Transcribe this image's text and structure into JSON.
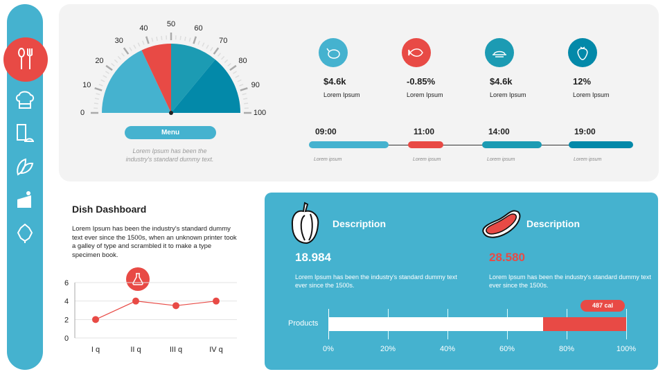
{
  "sidebar": {
    "items": [
      {
        "icon": "utensils-icon",
        "active": true
      },
      {
        "icon": "chef-hat-icon"
      },
      {
        "icon": "menu-cloche-icon"
      },
      {
        "icon": "leaves-icon"
      },
      {
        "icon": "cake-slice-icon"
      },
      {
        "icon": "hops-icon"
      }
    ]
  },
  "gauge": {
    "scale_labels": [
      "0",
      "10",
      "20",
      "30",
      "40",
      "50",
      "60",
      "70",
      "80",
      "90",
      "100"
    ],
    "segments": [
      {
        "from": 0,
        "to": 36,
        "color": "#45b2cf"
      },
      {
        "from": 36,
        "to": 50,
        "color": "#e84a45"
      },
      {
        "from": 50,
        "to": 72,
        "color": "#1c9bb3"
      },
      {
        "from": 72,
        "to": 100,
        "color": "#0389a9"
      }
    ],
    "needle_value": 50,
    "menu_label": "Menu",
    "caption_line1": "Lorem Ipsum has been the",
    "caption_line2": "industry's standard dummy text."
  },
  "kpis": [
    {
      "icon": "chicken-icon",
      "color": "#45b2cf",
      "value": "$4.6k",
      "label": "Lorem Ipsum"
    },
    {
      "icon": "fish-icon",
      "color": "#e84a45",
      "value": "-0.85%",
      "label": "Lorem Ipsum"
    },
    {
      "icon": "pasta-plate-icon",
      "color": "#1c9bb3",
      "value": "$4.6k",
      "label": "Lorem Ipsum"
    },
    {
      "icon": "strawberry-icon",
      "color": "#0389a9",
      "value": "12%",
      "label": "Lorem Ipsum"
    }
  ],
  "timeline": [
    {
      "time": "09:00",
      "label": "Lorem ipsum",
      "color": "#45b2cf"
    },
    {
      "time": "11:00",
      "label": "Lorem ipsum",
      "color": "#e84a45"
    },
    {
      "time": "14:00",
      "label": "Lorem ipsum",
      "color": "#1c9bb3"
    },
    {
      "time": "19:00",
      "label": "Lorem ipsum",
      "color": "#0389a9"
    }
  ],
  "dish": {
    "title": "Dish Dashboard",
    "text": "Lorem Ipsum has been the industry's standard dummy text ever since the 1500s, when an unknown printer took a galley  of type and scrambled it to make a type specimen book."
  },
  "chart_data": {
    "type": "line",
    "categories": [
      "I q",
      "II q",
      "III q",
      "IV q"
    ],
    "values": [
      2,
      4,
      3.5,
      4
    ],
    "ylim": [
      0,
      6
    ],
    "yticks": [
      "0",
      "2",
      "4",
      "6"
    ],
    "grid": true,
    "color": "#e84a45"
  },
  "descriptions": [
    {
      "icon": "bell-pepper-icon",
      "title": "Description",
      "value": "18.984",
      "value_color": "#ffffff",
      "text": "Lorem Ipsum has been the industry's standard dummy text ever since the 1500s."
    },
    {
      "icon": "steak-icon",
      "title": "Description",
      "value": "28.580",
      "value_color": "#e84a45",
      "text": "Lorem Ipsum has been the industry's standard dummy text ever since the 1500s."
    }
  ],
  "products_bar": {
    "label": "Products",
    "value_pct": 72,
    "badge": "487 cal",
    "ticks": [
      "0%",
      "20%",
      "40%",
      "60%",
      "80%",
      "100%"
    ]
  }
}
